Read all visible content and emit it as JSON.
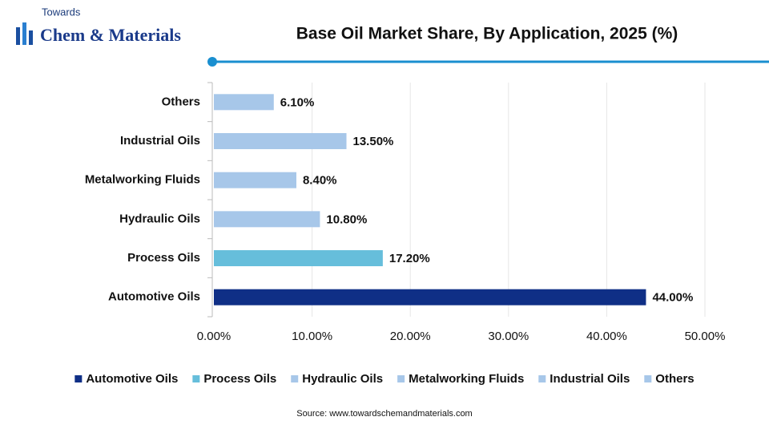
{
  "logo": {
    "top": "Towards",
    "main": "Chem & Materials"
  },
  "chart_data": {
    "type": "bar",
    "orientation": "horizontal",
    "title": "Base Oil Market Share, By Application, 2025 (%)",
    "categories": [
      "Automotive Oils",
      "Process Oils",
      "Hydraulic Oils",
      "Metalworking Fluids",
      "Industrial Oils",
      "Others"
    ],
    "values": [
      44,
      17.2,
      10.8,
      8.4,
      13.5,
      6.1
    ],
    "value_labels": [
      "44.00%",
      "17.20%",
      "10.80%",
      "8.40%",
      "13.50%",
      "6.10%"
    ],
    "colors": [
      "#0f2f86",
      "#66bedb",
      "#a7c7e9",
      "#a7c7e9",
      "#a7c7e9",
      "#a7c7e9"
    ],
    "xlim": [
      0,
      50
    ],
    "xticks": [
      {
        "value": 0,
        "label": "0.00%"
      },
      {
        "value": 10,
        "label": "10.00%"
      },
      {
        "value": 20,
        "label": "20.00%"
      },
      {
        "value": 30,
        "label": "30.00%"
      },
      {
        "value": 40,
        "label": "40.00%"
      },
      {
        "value": 50,
        "label": "50.00%"
      }
    ],
    "grid": true,
    "legend": "bottom",
    "source": "Source: www.towardschemandmaterials.com"
  }
}
